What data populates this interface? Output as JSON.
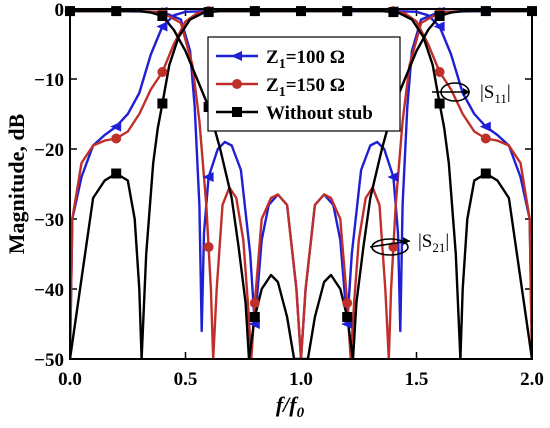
{
  "chart_data": {
    "type": "line",
    "xlabel": "f/f",
    "xlabel_sub": "0",
    "ylabel": "Magnitude, dB",
    "xlim": [
      0.0,
      2.0
    ],
    "ylim": [
      -50,
      0
    ],
    "xticks": [
      0.0,
      0.5,
      1.0,
      1.5,
      2.0
    ],
    "xtick_labels": [
      "0.0",
      "0.5",
      "1.0",
      "1.5",
      "2.0"
    ],
    "yticks": [
      0,
      -10,
      -20,
      -30,
      -40,
      -50
    ],
    "ytick_labels": [
      "0",
      "−10",
      "−20",
      "−30",
      "−40",
      "−50"
    ],
    "legend_position": "top-center",
    "annotations": [
      {
        "label": "|S",
        "sub": "11",
        "suffix": "|",
        "x": 1.6,
        "y": -10
      },
      {
        "label": "|S",
        "sub": "21",
        "suffix": "|",
        "x": 1.42,
        "y": -32
      }
    ],
    "series": [
      {
        "name": "Z",
        "name_sub": "1",
        "name_suffix": "=100 Ω",
        "color": "#1f1fd6",
        "marker": "triangle-left",
        "s21": [
          [
            0.0,
            -50
          ],
          [
            0.01,
            -30
          ],
          [
            0.05,
            -24
          ],
          [
            0.1,
            -19.5
          ],
          [
            0.15,
            -18
          ],
          [
            0.2,
            -16.8
          ],
          [
            0.25,
            -15
          ],
          [
            0.3,
            -12
          ],
          [
            0.35,
            -6.5
          ],
          [
            0.4,
            -2.5
          ],
          [
            0.45,
            -0.9
          ],
          [
            0.5,
            -0.4
          ],
          [
            0.6,
            -0.3
          ],
          [
            0.8,
            -0.3
          ],
          [
            1.0,
            -0.3
          ],
          [
            1.2,
            -0.3
          ],
          [
            1.4,
            -0.3
          ],
          [
            1.5,
            -0.4
          ],
          [
            1.55,
            -0.9
          ],
          [
            1.6,
            -2.5
          ],
          [
            1.65,
            -6.5
          ],
          [
            1.7,
            -12
          ],
          [
            1.75,
            -15
          ],
          [
            1.8,
            -16.8
          ],
          [
            1.85,
            -18
          ],
          [
            1.9,
            -19.5
          ],
          [
            1.95,
            -24
          ],
          [
            1.99,
            -30
          ],
          [
            2.0,
            -50
          ]
        ],
        "s11": [
          [
            0.0,
            -0.3
          ],
          [
            0.2,
            -0.3
          ],
          [
            0.4,
            -0.4
          ],
          [
            0.48,
            -1.5
          ],
          [
            0.52,
            -6
          ],
          [
            0.54,
            -14
          ],
          [
            0.56,
            -28
          ],
          [
            0.57,
            -46
          ],
          [
            0.58,
            -32
          ],
          [
            0.6,
            -24
          ],
          [
            0.64,
            -20
          ],
          [
            0.67,
            -19
          ],
          [
            0.7,
            -19.5
          ],
          [
            0.74,
            -23
          ],
          [
            0.78,
            -35
          ],
          [
            0.8,
            -45
          ],
          [
            0.83,
            -33
          ],
          [
            0.86,
            -28
          ],
          [
            0.9,
            -26.5
          ],
          [
            0.94,
            -28
          ],
          [
            0.98,
            -40
          ],
          [
            1.0,
            -50
          ],
          [
            1.02,
            -40
          ],
          [
            1.06,
            -28
          ],
          [
            1.1,
            -26.5
          ],
          [
            1.14,
            -28
          ],
          [
            1.17,
            -33
          ],
          [
            1.2,
            -45
          ],
          [
            1.22,
            -35
          ],
          [
            1.26,
            -23
          ],
          [
            1.3,
            -19.5
          ],
          [
            1.33,
            -19
          ],
          [
            1.36,
            -20
          ],
          [
            1.4,
            -24
          ],
          [
            1.42,
            -32
          ],
          [
            1.43,
            -46
          ],
          [
            1.44,
            -28
          ],
          [
            1.46,
            -14
          ],
          [
            1.48,
            -6
          ],
          [
            1.52,
            -1.5
          ],
          [
            1.6,
            -0.4
          ],
          [
            1.8,
            -0.3
          ],
          [
            2.0,
            -0.3
          ]
        ]
      },
      {
        "name": "Z",
        "name_sub": "1",
        "name_suffix": "=150 Ω",
        "color": "#c0302a",
        "marker": "circle",
        "s21": [
          [
            0.0,
            -50
          ],
          [
            0.01,
            -30
          ],
          [
            0.05,
            -22
          ],
          [
            0.1,
            -19.5
          ],
          [
            0.15,
            -18.8
          ],
          [
            0.2,
            -18.5
          ],
          [
            0.25,
            -17.5
          ],
          [
            0.3,
            -15
          ],
          [
            0.35,
            -11.5
          ],
          [
            0.4,
            -9
          ],
          [
            0.45,
            -5
          ],
          [
            0.5,
            -1.8
          ],
          [
            0.55,
            -0.6
          ],
          [
            0.6,
            -0.3
          ],
          [
            0.8,
            -0.3
          ],
          [
            1.0,
            -0.3
          ],
          [
            1.2,
            -0.3
          ],
          [
            1.4,
            -0.3
          ],
          [
            1.45,
            -0.6
          ],
          [
            1.5,
            -1.8
          ],
          [
            1.55,
            -5
          ],
          [
            1.6,
            -9
          ],
          [
            1.65,
            -11.5
          ],
          [
            1.7,
            -15
          ],
          [
            1.75,
            -17.5
          ],
          [
            1.8,
            -18.5
          ],
          [
            1.85,
            -18.8
          ],
          [
            1.9,
            -19.5
          ],
          [
            1.95,
            -22
          ],
          [
            1.99,
            -30
          ],
          [
            2.0,
            -50
          ]
        ],
        "s11": [
          [
            0.0,
            -0.3
          ],
          [
            0.3,
            -0.3
          ],
          [
            0.4,
            -0.5
          ],
          [
            0.48,
            -2
          ],
          [
            0.53,
            -8
          ],
          [
            0.56,
            -16
          ],
          [
            0.59,
            -28
          ],
          [
            0.61,
            -40
          ],
          [
            0.62,
            -50
          ],
          [
            0.635,
            -40
          ],
          [
            0.66,
            -28
          ],
          [
            0.69,
            -25.5
          ],
          [
            0.72,
            -27
          ],
          [
            0.75,
            -33
          ],
          [
            0.77,
            -42
          ],
          [
            0.785,
            -50
          ],
          [
            0.8,
            -42
          ],
          [
            0.83,
            -30
          ],
          [
            0.87,
            -27
          ],
          [
            0.9,
            -26.5
          ],
          [
            0.94,
            -28
          ],
          [
            0.98,
            -40
          ],
          [
            1.0,
            -50
          ],
          [
            1.02,
            -40
          ],
          [
            1.06,
            -28
          ],
          [
            1.1,
            -26.5
          ],
          [
            1.13,
            -27
          ],
          [
            1.17,
            -30
          ],
          [
            1.2,
            -42
          ],
          [
            1.215,
            -50
          ],
          [
            1.23,
            -42
          ],
          [
            1.25,
            -33
          ],
          [
            1.28,
            -27
          ],
          [
            1.31,
            -25.5
          ],
          [
            1.34,
            -28
          ],
          [
            1.365,
            -40
          ],
          [
            1.38,
            -50
          ],
          [
            1.39,
            -40
          ],
          [
            1.41,
            -28
          ],
          [
            1.44,
            -16
          ],
          [
            1.47,
            -8
          ],
          [
            1.52,
            -2
          ],
          [
            1.6,
            -0.5
          ],
          [
            1.7,
            -0.3
          ],
          [
            2.0,
            -0.3
          ]
        ]
      },
      {
        "name": "Without stub",
        "color": "#000000",
        "marker": "square",
        "s21": [
          [
            0.0,
            -50
          ],
          [
            0.1,
            -27
          ],
          [
            0.15,
            -24.5
          ],
          [
            0.2,
            -23.5
          ],
          [
            0.25,
            -24.5
          ],
          [
            0.28,
            -30
          ],
          [
            0.3,
            -40
          ],
          [
            0.31,
            -50
          ],
          [
            0.33,
            -35
          ],
          [
            0.36,
            -22
          ],
          [
            0.38,
            -17
          ],
          [
            0.4,
            -13.5
          ],
          [
            0.43,
            -8
          ],
          [
            0.47,
            -4
          ],
          [
            0.52,
            -1.5
          ],
          [
            0.58,
            -0.5
          ],
          [
            0.65,
            -0.3
          ],
          [
            1.35,
            -0.3
          ],
          [
            1.42,
            -0.5
          ],
          [
            1.48,
            -1.5
          ],
          [
            1.53,
            -4
          ],
          [
            1.57,
            -8
          ],
          [
            1.6,
            -13.5
          ],
          [
            1.62,
            -17
          ],
          [
            1.64,
            -22
          ],
          [
            1.67,
            -35
          ],
          [
            1.69,
            -50
          ],
          [
            1.7,
            -40
          ],
          [
            1.72,
            -30
          ],
          [
            1.75,
            -24.5
          ],
          [
            1.8,
            -23.5
          ],
          [
            1.85,
            -24.5
          ],
          [
            1.9,
            -27
          ],
          [
            2.0,
            -50
          ]
        ],
        "s11": [
          [
            0.0,
            -0.3
          ],
          [
            0.3,
            -0.3
          ],
          [
            0.35,
            -0.5
          ],
          [
            0.4,
            -1
          ],
          [
            0.45,
            -3
          ],
          [
            0.5,
            -6
          ],
          [
            0.55,
            -10
          ],
          [
            0.6,
            -14
          ],
          [
            0.65,
            -20
          ],
          [
            0.7,
            -27
          ],
          [
            0.73,
            -34
          ],
          [
            0.76,
            -42
          ],
          [
            0.775,
            -50
          ],
          [
            0.8,
            -44
          ],
          [
            0.83,
            -40
          ],
          [
            0.87,
            -38
          ],
          [
            0.9,
            -39
          ],
          [
            0.94,
            -44
          ],
          [
            0.97,
            -50
          ],
          [
            1.0,
            -50
          ],
          [
            1.03,
            -50
          ],
          [
            1.06,
            -44
          ],
          [
            1.1,
            -39
          ],
          [
            1.13,
            -38
          ],
          [
            1.17,
            -40
          ],
          [
            1.2,
            -44
          ],
          [
            1.225,
            -50
          ],
          [
            1.24,
            -42
          ],
          [
            1.27,
            -34
          ],
          [
            1.3,
            -27
          ],
          [
            1.35,
            -20
          ],
          [
            1.4,
            -14
          ],
          [
            1.45,
            -10
          ],
          [
            1.5,
            -6
          ],
          [
            1.55,
            -3
          ],
          [
            1.6,
            -1
          ],
          [
            1.65,
            -0.5
          ],
          [
            1.7,
            -0.3
          ],
          [
            2.0,
            -0.3
          ]
        ]
      }
    ]
  }
}
